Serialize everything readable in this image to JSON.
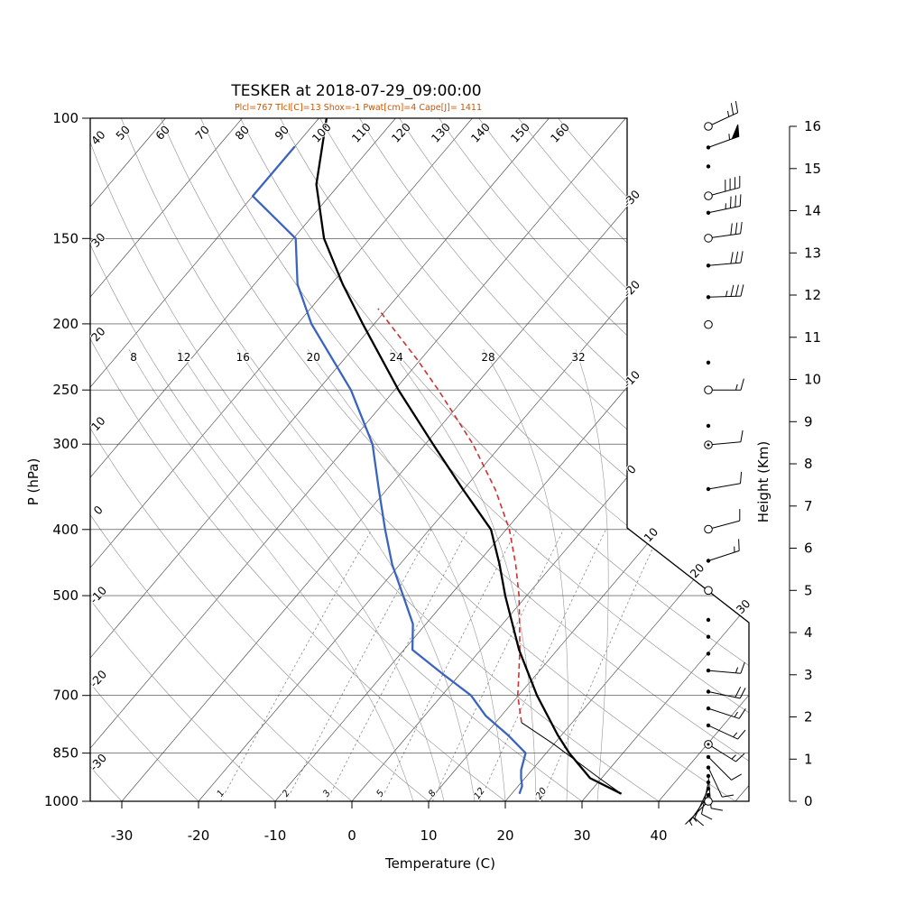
{
  "title": "TESKER at 2018-07-29_09:00:00",
  "params_line": "Plcl=767 Tlcl[C]=13 Shox=-1 Pwat[cm]=4 Cape[J]= 1411",
  "colors": {
    "temperature_curve": "#000000",
    "dewpoint_curve": "#3b64c0",
    "parcel_curve": "#d03030",
    "params_text": "#cc5500",
    "grid": "#3a3a3a",
    "adiabat_grid": "#8c8c8c"
  },
  "axes": {
    "pressure": {
      "label": "P (hPa)",
      "ticks": [
        100,
        150,
        200,
        250,
        300,
        400,
        500,
        700,
        850,
        1000
      ]
    },
    "temperature": {
      "label": "Temperature (C)",
      "ticks": [
        -30,
        -20,
        -10,
        0,
        10,
        20,
        30,
        40
      ]
    },
    "height": {
      "label": "Height (Km)",
      "ticks": [
        0,
        1,
        2,
        3,
        4,
        5,
        6,
        7,
        8,
        9,
        10,
        11,
        12,
        13,
        14,
        15,
        16
      ]
    },
    "dry_adiabat_labels_top": [
      "50",
      "60",
      "70",
      "80",
      "90",
      "100",
      "110",
      "120",
      "130",
      "140",
      "150",
      "160"
    ],
    "dry_adiabat_labels_left": [
      "40",
      "30",
      "20",
      "10",
      "0",
      "-10",
      "-20",
      "-30"
    ],
    "isotherm_labels_right": [
      "-30",
      "-20",
      "-10",
      "0",
      "10",
      "20",
      "30"
    ],
    "moist_adiabat_labels": [
      "8",
      "12",
      "16",
      "20",
      "24",
      "28",
      "32"
    ],
    "mixing_ratio_labels": [
      "1",
      "2",
      "3",
      "5",
      "8",
      "12",
      "20"
    ]
  },
  "chart_data": {
    "type": "skewt-log-p sounding",
    "station": "TESKER",
    "datetime": "2018-07-29_09:00:00",
    "pressure_range_hPa": [
      100,
      1000
    ],
    "temperature_axis_range_C": [
      -30,
      40
    ],
    "height_axis_range_km": [
      0,
      16
    ],
    "temperature_profile_p_T": [
      [
        975,
        34.3
      ],
      [
        925,
        28.5
      ],
      [
        850,
        23
      ],
      [
        800,
        19.5
      ],
      [
        700,
        12.4
      ],
      [
        600,
        5
      ],
      [
        500,
        -2.8
      ],
      [
        450,
        -7
      ],
      [
        400,
        -12
      ],
      [
        350,
        -20
      ],
      [
        300,
        -29
      ],
      [
        250,
        -39.5
      ],
      [
        200,
        -51.5
      ],
      [
        175,
        -58.5
      ],
      [
        150,
        -66
      ],
      [
        125,
        -73
      ],
      [
        100,
        -79
      ]
    ],
    "dewpoint_profile_p_T": [
      [
        975,
        21
      ],
      [
        950,
        20.5
      ],
      [
        925,
        19.5
      ],
      [
        900,
        18.6
      ],
      [
        850,
        17.3
      ],
      [
        800,
        13
      ],
      [
        750,
        8
      ],
      [
        700,
        3.8
      ],
      [
        650,
        -2.4
      ],
      [
        600,
        -8.9
      ],
      [
        550,
        -11.7
      ],
      [
        500,
        -16.1
      ],
      [
        450,
        -21
      ],
      [
        400,
        -25.8
      ],
      [
        350,
        -31
      ],
      [
        300,
        -36.9
      ],
      [
        250,
        -45.7
      ],
      [
        200,
        -58.2
      ],
      [
        175,
        -64.4
      ],
      [
        150,
        -69.7
      ],
      [
        130,
        -80
      ],
      [
        110,
        -80
      ]
    ],
    "parcel_profile_p_T": [
      [
        767,
        13.4
      ],
      [
        700,
        9.9
      ],
      [
        650,
        7.6
      ],
      [
        600,
        5.1
      ],
      [
        550,
        2.2
      ],
      [
        500,
        -1
      ],
      [
        450,
        -4.9
      ],
      [
        400,
        -9.6
      ],
      [
        350,
        -15.8
      ],
      [
        300,
        -23.8
      ],
      [
        250,
        -34.3
      ],
      [
        225,
        -40.6
      ],
      [
        200,
        -48
      ],
      [
        190,
        -51.2
      ]
    ],
    "parcel_dry_ascent_p_T": [
      [
        975,
        34.3
      ],
      [
        925,
        29.7
      ],
      [
        875,
        25
      ],
      [
        825,
        20
      ],
      [
        767,
        13.4
      ]
    ],
    "winds": [
      {
        "km": 16.0,
        "sym": "circ",
        "dir": 65,
        "kt": 25
      },
      {
        "km": 15.5,
        "sym": "dot",
        "dir": 70,
        "kt": 55
      },
      {
        "km": 15.05,
        "sym": "dot",
        "dir": 0,
        "kt": 0
      },
      {
        "km": 14.35,
        "sym": "circ",
        "dir": 75,
        "kt": 40
      },
      {
        "km": 13.95,
        "sym": "dot",
        "dir": 78,
        "kt": 35
      },
      {
        "km": 13.35,
        "sym": "circ",
        "dir": 82,
        "kt": 30
      },
      {
        "km": 12.7,
        "sym": "dot",
        "dir": 85,
        "kt": 30
      },
      {
        "km": 11.95,
        "sym": "dot",
        "dir": 88,
        "kt": 35
      },
      {
        "km": 11.3,
        "sym": "circ",
        "dir": 0,
        "kt": 0
      },
      {
        "km": 10.4,
        "sym": "dot",
        "dir": 0,
        "kt": 0
      },
      {
        "km": 9.75,
        "sym": "circ",
        "dir": 90,
        "kt": 15
      },
      {
        "km": 8.9,
        "sym": "dot",
        "dir": 0,
        "kt": 0
      },
      {
        "km": 8.45,
        "sym": "circdot",
        "dir": 85,
        "kt": 10
      },
      {
        "km": 7.4,
        "sym": "dot",
        "dir": 80,
        "kt": 10
      },
      {
        "km": 6.45,
        "sym": "circ",
        "dir": 75,
        "kt": 10
      },
      {
        "km": 5.7,
        "sym": "dot",
        "dir": 72,
        "kt": 15
      },
      {
        "km": 5.0,
        "sym": "circ",
        "dir": 0,
        "kt": 0
      },
      {
        "km": 4.3,
        "sym": "dot",
        "dir": 0,
        "kt": 0
      },
      {
        "km": 3.9,
        "sym": "dot",
        "dir": 0,
        "kt": 0
      },
      {
        "km": 3.5,
        "sym": "dot",
        "dir": 0,
        "kt": 0
      },
      {
        "km": 3.1,
        "sym": "dot",
        "dir": 95,
        "kt": 15
      },
      {
        "km": 2.6,
        "sym": "dot",
        "dir": 102,
        "kt": 20
      },
      {
        "km": 2.2,
        "sym": "dot",
        "dir": 108,
        "kt": 15
      },
      {
        "km": 1.8,
        "sym": "dot",
        "dir": 115,
        "kt": 15
      },
      {
        "km": 1.35,
        "sym": "circdot",
        "dir": 122,
        "kt": 15
      },
      {
        "km": 1.05,
        "sym": "dot",
        "dir": 135,
        "kt": 10
      },
      {
        "km": 0.8,
        "sym": "dot",
        "dir": 155,
        "kt": 10
      },
      {
        "km": 0.6,
        "sym": "dot",
        "dir": 175,
        "kt": 10
      },
      {
        "km": 0.45,
        "sym": "dot",
        "dir": 192,
        "kt": 10
      },
      {
        "km": 0.3,
        "sym": "dot",
        "dir": 205,
        "kt": 10
      },
      {
        "km": 0.15,
        "sym": "dot",
        "dir": 215,
        "kt": 8
      },
      {
        "km": 0.0,
        "sym": "circ",
        "dir": 225,
        "kt": 5
      }
    ]
  }
}
